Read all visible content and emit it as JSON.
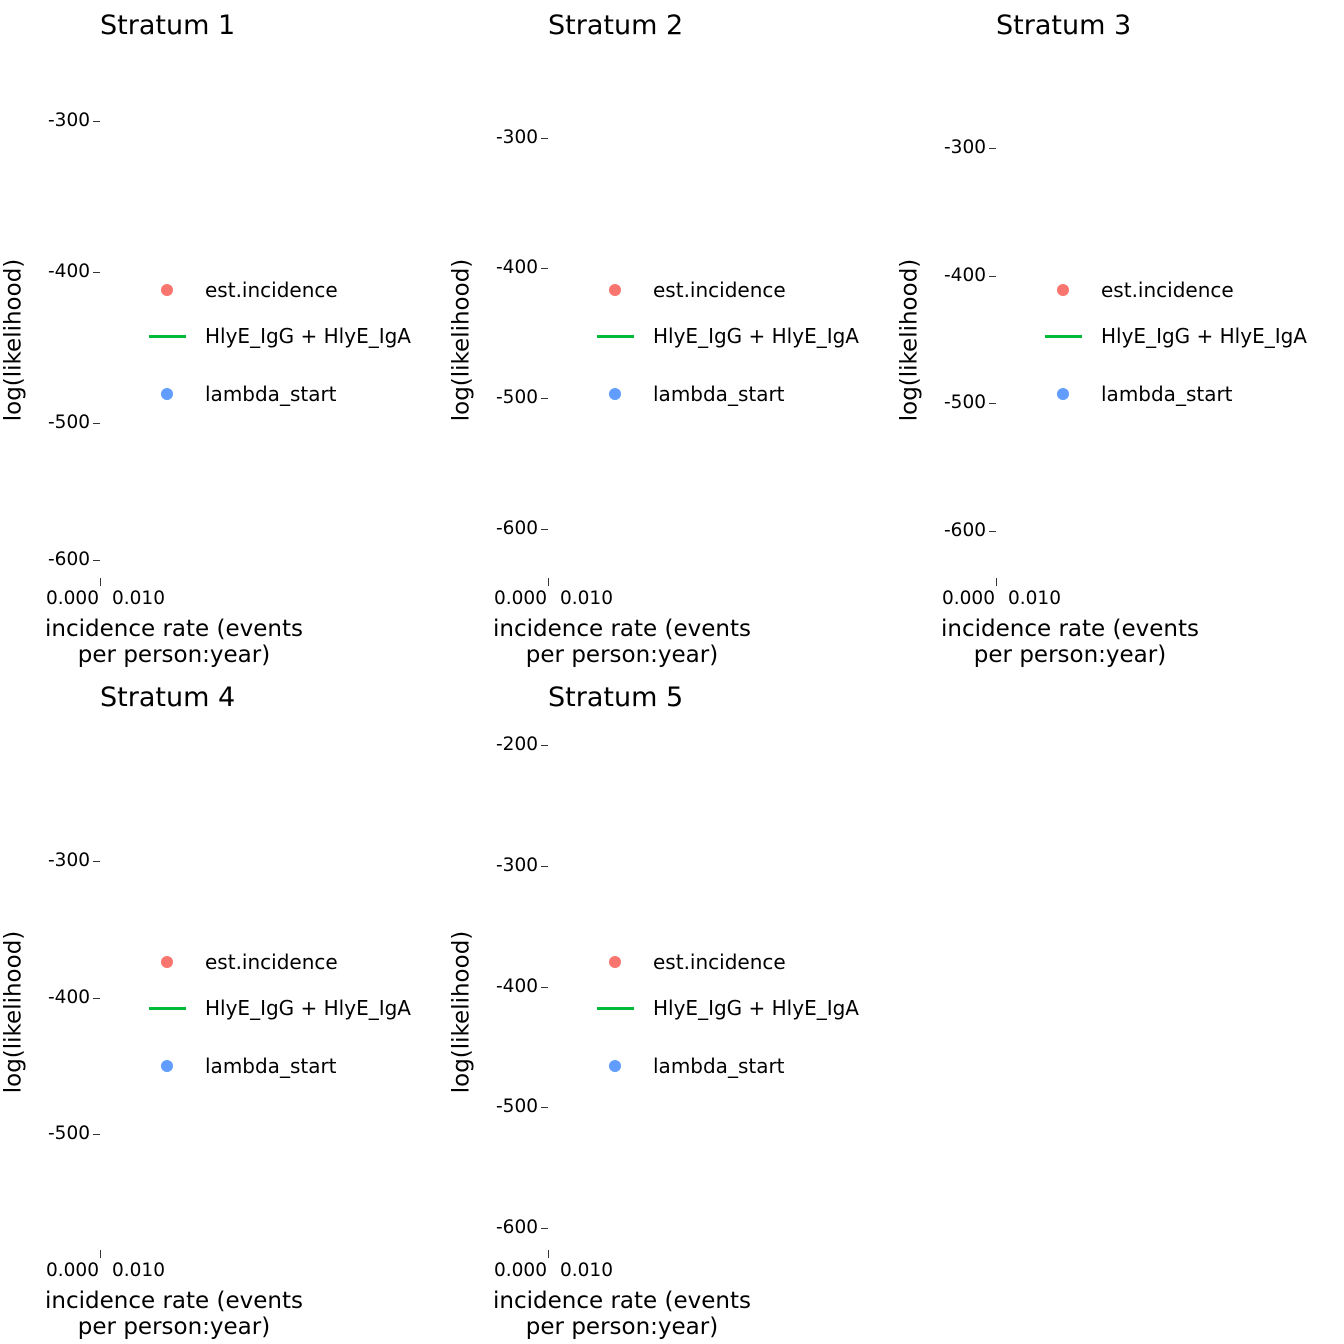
{
  "chart_data": [
    {
      "type": "line",
      "title": "Stratum 1",
      "xlabel": "incidence rate (events per person:year)",
      "ylabel": "log(likelihood)",
      "x_tick_labels": [
        "0.000",
        "0.010"
      ],
      "y_ticks": [
        -300,
        -400,
        -500,
        -600
      ],
      "ylim": [
        -615,
        -280
      ],
      "series": [],
      "legend": [
        "est.incidence",
        "HlyE_IgG + HlyE_IgA",
        "lambda_start"
      ],
      "legend_placement": "right"
    },
    {
      "type": "line",
      "title": "Stratum 2",
      "xlabel": "incidence rate (events per person:year)",
      "ylabel": "log(likelihood)",
      "x_tick_labels": [
        "0.000",
        "0.010"
      ],
      "y_ticks": [
        -300,
        -400,
        -500,
        -600
      ],
      "ylim": [
        -645,
        -285
      ],
      "series": [],
      "legend": [
        "est.incidence",
        "HlyE_IgG + HlyE_IgA",
        "lambda_start"
      ],
      "legend_placement": "right"
    },
    {
      "type": "line",
      "title": "Stratum 3",
      "xlabel": "incidence rate (events per person:year)",
      "ylabel": "log(likelihood)",
      "x_tick_labels": [
        "0.000",
        "0.010"
      ],
      "y_ticks": [
        -300,
        -400,
        -500,
        -600
      ],
      "ylim": [
        -645,
        -285
      ],
      "series": [],
      "legend": [
        "est.incidence",
        "HlyE_IgG + HlyE_IgA",
        "lambda_start"
      ],
      "legend_placement": "right"
    },
    {
      "type": "line",
      "title": "Stratum 4",
      "xlabel": "incidence rate (events per person:year)",
      "ylabel": "log(likelihood)",
      "x_tick_labels": [
        "0.000",
        "0.010"
      ],
      "y_ticks": [
        -300,
        -400,
        -500
      ],
      "ylim": [
        -590,
        -260
      ],
      "series": [],
      "legend": [
        "est.incidence",
        "HlyE_IgG + HlyE_IgA",
        "lambda_start"
      ],
      "legend_placement": "right"
    },
    {
      "type": "line",
      "title": "Stratum 5",
      "xlabel": "incidence rate (events per person:year)",
      "ylabel": "log(likelihood)",
      "x_tick_labels": [
        "0.000",
        "0.010"
      ],
      "y_ticks": [
        -200,
        -300,
        -400,
        -500,
        -600
      ],
      "ylim": [
        -630,
        -190
      ],
      "series": [],
      "legend": [
        "est.incidence",
        "HlyE_IgG + HlyE_IgA",
        "lambda_start"
      ],
      "legend_placement": "right"
    }
  ],
  "legend_colors": {
    "est.incidence": "#F8766D",
    "HlyE_IgG + HlyE_IgA": "#00BA38",
    "lambda_start": "#619CFF"
  }
}
